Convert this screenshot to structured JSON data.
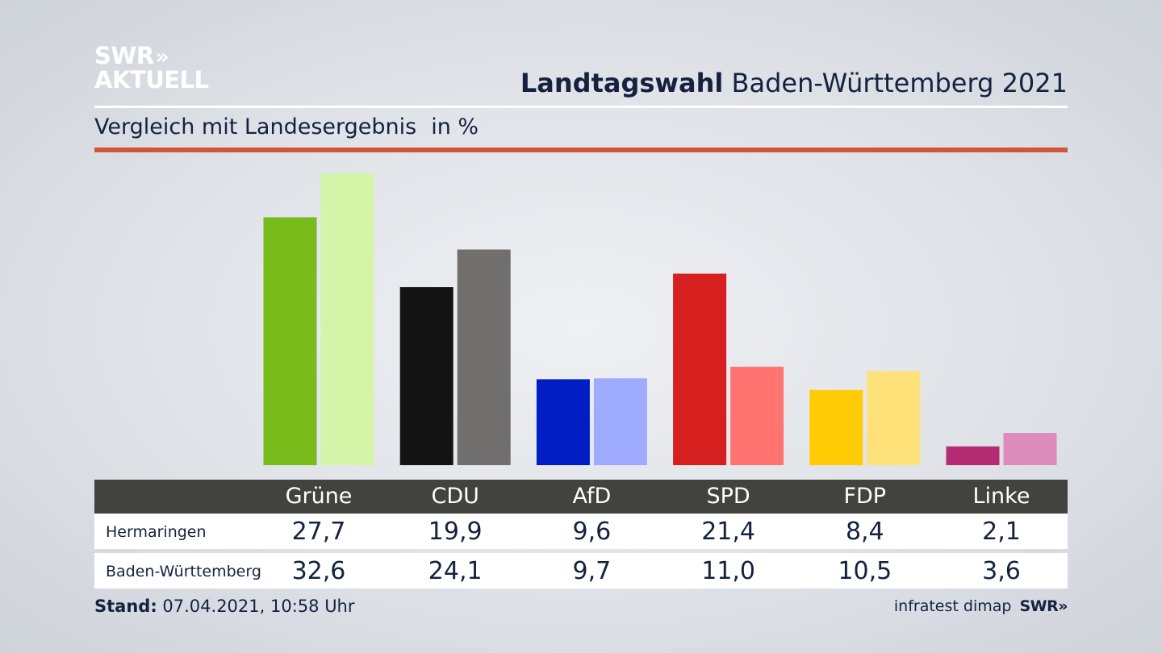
{
  "logo": {
    "line1": "SWR",
    "arrows": "»",
    "line2": "AKTUELL"
  },
  "header": {
    "title_bold": "Landtagswahl",
    "title_rest": "Baden-Württemberg 2021",
    "subtitle": "Vergleich mit Landesergebnis",
    "unit": "in %"
  },
  "chart_data": {
    "type": "bar",
    "title": "Landtagswahl Baden-Württemberg 2021",
    "subtitle": "Vergleich mit Landesergebnis in %",
    "categories": [
      "Grüne",
      "CDU",
      "AfD",
      "SPD",
      "FDP",
      "Linke"
    ],
    "series": [
      {
        "name": "Hermaringen",
        "values": [
          27.7,
          19.9,
          9.6,
          21.4,
          8.4,
          2.1
        ]
      },
      {
        "name": "Baden-Württemberg",
        "values": [
          32.6,
          24.1,
          9.7,
          11.0,
          10.5,
          3.6
        ]
      }
    ],
    "display_values": {
      "Hermaringen": [
        "27,7",
        "19,9",
        "9,6",
        "21,4",
        "8,4",
        "2,1"
      ],
      "Baden-Württemberg": [
        "32,6",
        "24,1",
        "9,7",
        "11,0",
        "10,5",
        "3,6"
      ]
    },
    "colors": {
      "Hermaringen": [
        "#78bb1b",
        "#131313",
        "#001ec4",
        "#d61f1f",
        "#ffcb05",
        "#b52c75"
      ],
      "Baden-Württemberg": [
        "#d4f5a7",
        "#706f6d",
        "#9fabff",
        "#ff7370",
        "#ffe17a",
        "#de8cbb"
      ]
    },
    "ylim": [
      0,
      34
    ],
    "xlabel": "",
    "ylabel": ""
  },
  "table": {
    "rows": [
      {
        "label": "Hermaringen"
      },
      {
        "label": "Baden-Württemberg"
      }
    ]
  },
  "footer": {
    "stand_label": "Stand:",
    "stand_value": "07.04.2021, 10:58 Uhr",
    "source": "infratest dimap",
    "brand": "SWR",
    "brand_arrows": "»"
  }
}
